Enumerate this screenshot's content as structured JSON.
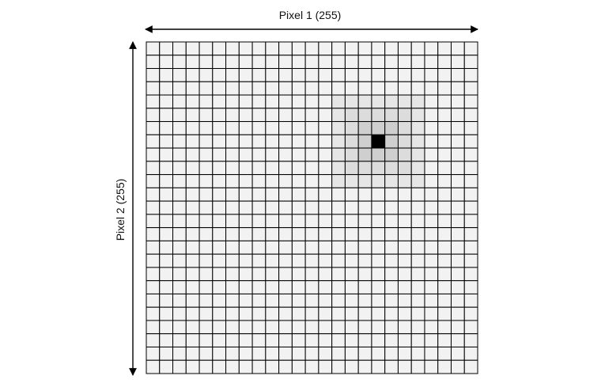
{
  "diagram": {
    "x_axis_label": "Pixel 1 (255)",
    "y_axis_label": "Pixel 2 (255)",
    "grid": {
      "columns": 25,
      "rows": 25,
      "cell_fill": "#f2f2f2",
      "line_color": "#000000"
    },
    "highlight": {
      "center_column": 17,
      "center_row": 7,
      "center_color": "#000000",
      "ring_colors": [
        "#cfcfcf",
        "#dcdcdc",
        "#e6e6e6"
      ]
    },
    "arrow_color": "#000000"
  }
}
